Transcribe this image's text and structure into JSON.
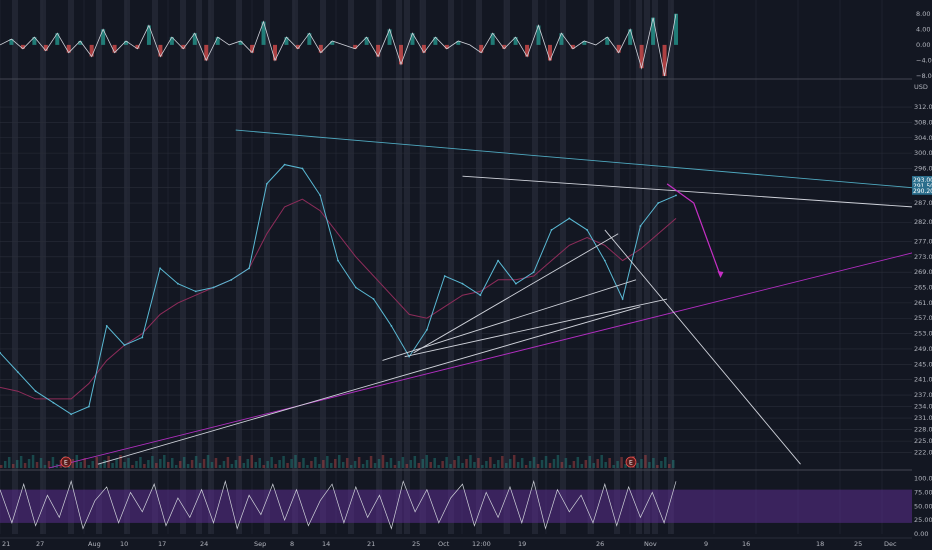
{
  "colors": {
    "background": "#131722",
    "grid": "#2a2e39",
    "session_band": "#3c4050",
    "price_line": "#5ab9d4",
    "ma_line": "#8e2c5a",
    "trend_cyan": "#4fa9c0",
    "trend_magenta": "#b32ec2",
    "trend_white": "#cfd2da",
    "arrow": "#c52fc4",
    "osc_up": "#26a69a",
    "osc_down": "#ef5350",
    "stoch_band": "#5b2d8e",
    "axis_text": "#b2b5be",
    "badge_bg": "#2a6e8c"
  },
  "icons": {
    "earnings_marker": "earnings-e-icon"
  },
  "axis": {
    "unit_label": "USD"
  },
  "price_badges": [
    "293.00",
    "291.50",
    "290.20"
  ],
  "earnings_markers": [
    "E",
    "E"
  ],
  "chart_data": [
    {
      "type": "line",
      "title": "",
      "panel": "oscillator",
      "ylim": [
        -8,
        10
      ],
      "yticks": [
        8,
        4,
        0,
        -4,
        -8
      ],
      "ytick_labels": [
        "8.00",
        "4.00",
        "0.00",
        "−4.00",
        "−8.00"
      ],
      "series": [
        {
          "values": [
            0,
            1.5,
            -1,
            2,
            -1.5,
            3,
            -2,
            1,
            -3,
            4,
            -2,
            1,
            -1,
            5,
            -3,
            2,
            -1,
            3,
            -4,
            2,
            0,
            1,
            -2,
            6,
            -4,
            2,
            -1,
            3,
            -2,
            1,
            0,
            -1,
            2,
            -3,
            4,
            -5,
            3,
            -2,
            2,
            -1,
            1,
            0,
            -2,
            3,
            -1,
            2,
            -3,
            5,
            -4,
            3,
            -1,
            1,
            0,
            2,
            -2,
            4,
            -6,
            7,
            -8,
            8
          ]
        }
      ]
    },
    {
      "type": "line",
      "title": "",
      "panel": "price",
      "xlabel": "",
      "ylabel": "",
      "ylim": [
        218,
        318
      ],
      "yticks": [
        312,
        308,
        304,
        300,
        296,
        291,
        287,
        282,
        277,
        273,
        269,
        265,
        261,
        257,
        253,
        249,
        245,
        241,
        237,
        234,
        231,
        228,
        225,
        222
      ],
      "ytick_labels": [
        "312.00",
        "308.00",
        "304.00",
        "300.00",
        "296.00",
        "291.00",
        "287.00",
        "282.00",
        "277.00",
        "273.00",
        "269.00",
        "265.00",
        "261.00",
        "257.00",
        "253.00",
        "249.00",
        "245.00",
        "241.00",
        "237.00",
        "234.00",
        "231.00",
        "228.00",
        "225.00",
        "222.00"
      ],
      "x_tick_labels": [
        "21",
        "27",
        "Aug",
        "10",
        "17",
        "24",
        "Sep",
        "8",
        "14",
        "21",
        "25",
        "Oct",
        "12:00",
        "19",
        "26",
        "Nov",
        "9",
        "16",
        "18",
        "25",
        "Dec"
      ],
      "x": [
        0,
        4,
        8,
        12,
        16,
        20,
        24,
        28,
        32,
        36,
        40,
        44,
        48,
        52,
        56,
        60,
        64,
        68,
        72,
        76,
        80,
        84,
        88,
        92,
        96,
        100,
        104,
        108,
        112,
        116,
        120,
        124,
        128,
        132,
        136,
        140,
        144,
        148,
        152
      ],
      "series": [
        {
          "name": "",
          "values": [
            248,
            243,
            238,
            235,
            232,
            234,
            255,
            250,
            252,
            270,
            266,
            264,
            265,
            267,
            270,
            292,
            297,
            296,
            289,
            272,
            265,
            262,
            255,
            247,
            254,
            268,
            266,
            263,
            272,
            266,
            269,
            280,
            283,
            280,
            272,
            262,
            281,
            287,
            289
          ]
        },
        {
          "name": "",
          "values": [
            239,
            238,
            236,
            236,
            236,
            240,
            246,
            250,
            253,
            258,
            261,
            263,
            265,
            267,
            270,
            279,
            286,
            288,
            285,
            279,
            273,
            268,
            263,
            258,
            257,
            260,
            263,
            264,
            267,
            267,
            268,
            272,
            276,
            278,
            276,
            272,
            275,
            279,
            283
          ]
        }
      ],
      "trendlines": [
        {
          "from": [
            53,
            306
          ],
          "to": [
            212,
            291
          ]
        },
        {
          "from": [
            104,
            294
          ],
          "to": [
            212,
            286
          ]
        },
        {
          "from": [
            11,
            218
          ],
          "to": [
            212,
            274
          ]
        },
        {
          "from": [
            22,
            219
          ],
          "to": [
            144,
            260
          ]
        },
        {
          "from": [
            86,
            246
          ],
          "to": [
            143,
            267
          ]
        },
        {
          "from": [
            91,
            247
          ],
          "to": [
            150,
            262
          ]
        },
        {
          "from": [
            93,
            248
          ],
          "to": [
            139,
            279
          ]
        },
        {
          "from": [
            136,
            280
          ],
          "to": [
            180,
            219
          ]
        }
      ],
      "grid": true,
      "legend": "none"
    },
    {
      "type": "line",
      "title": "",
      "panel": "stochastic",
      "ylim": [
        0,
        110
      ],
      "yticks": [
        100,
        75,
        50,
        25,
        0
      ],
      "ytick_labels": [
        "100.00",
        "75.00",
        "50.00",
        "25.00",
        "0.00"
      ],
      "series": [
        {
          "values": [
            80,
            20,
            90,
            15,
            70,
            30,
            95,
            10,
            60,
            85,
            20,
            75,
            40,
            90,
            15,
            65,
            30,
            80,
            20,
            95,
            10,
            70,
            35,
            90,
            25,
            80,
            15,
            60,
            90,
            20,
            85,
            30,
            70,
            10,
            95,
            40,
            80,
            20,
            65,
            90,
            15,
            75,
            30,
            85,
            20,
            95,
            10,
            80,
            40,
            70,
            20,
            90,
            15,
            85,
            30,
            75,
            20,
            95
          ]
        }
      ]
    }
  ]
}
